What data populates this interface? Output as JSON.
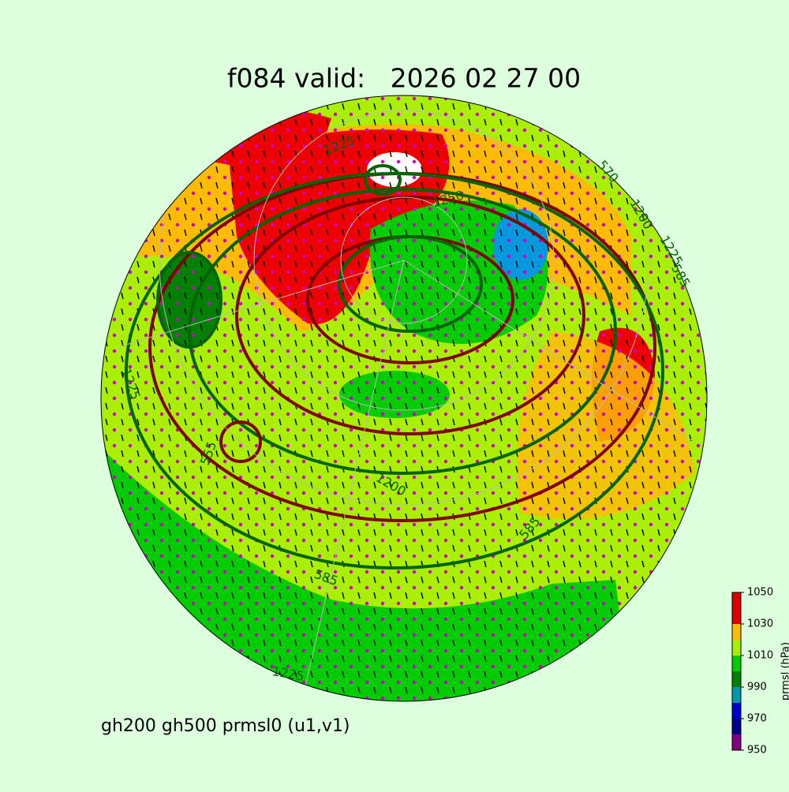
{
  "title": "f084 valid:   2026 02 27 00",
  "footer": "gh200 gh500 prmsl0 (u1,v1)",
  "map": {
    "contour_labels": [
      "1225",
      "570",
      "1200",
      "1225",
      "585",
      "1225",
      "555",
      "1200",
      "585",
      "585",
      "1225",
      "1250"
    ]
  },
  "colorbar": {
    "label": "prmsl (hPa)",
    "bounds": [
      950,
      960,
      970,
      980,
      990,
      1000,
      1010,
      1020,
      1030,
      1050
    ],
    "colors": [
      "#800080",
      "#00008b",
      "#0000cd",
      "#0099aa",
      "#008000",
      "#00cc00",
      "#aaee00",
      "#ffbb00",
      "#dd0000"
    ],
    "ticks": [
      950,
      970,
      990,
      1010,
      1030,
      1050
    ]
  }
}
